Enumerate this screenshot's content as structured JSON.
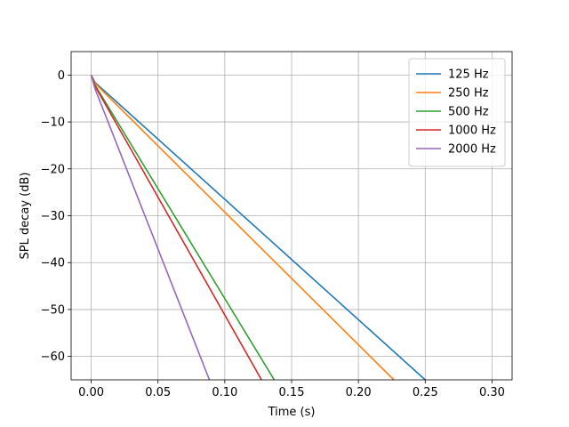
{
  "chart_data": {
    "type": "line",
    "title": "",
    "xlabel": "Time (s)",
    "ylabel": "SPL decay (dB)",
    "xlim": [
      -0.015,
      0.315
    ],
    "ylim": [
      -65,
      5
    ],
    "xticks": [
      0.0,
      0.05,
      0.1,
      0.15,
      0.2,
      0.25,
      0.3
    ],
    "xtick_labels": [
      "0.00",
      "0.05",
      "0.10",
      "0.15",
      "0.20",
      "0.25",
      "0.30"
    ],
    "yticks": [
      0,
      -10,
      -20,
      -30,
      -40,
      -50,
      -60
    ],
    "ytick_labels": [
      "0",
      "−10",
      "−20",
      "−30",
      "−40",
      "−50",
      "−60"
    ],
    "grid": true,
    "legend_position": "top-right",
    "series": [
      {
        "name": "125 Hz",
        "color": "#1f77b4",
        "points": [
          [
            0.0,
            0
          ],
          [
            0.003,
            -1.6
          ],
          [
            0.25,
            -65
          ]
        ]
      },
      {
        "name": "250 Hz",
        "color": "#ff7f0e",
        "points": [
          [
            0.0,
            0
          ],
          [
            0.003,
            -1.8
          ],
          [
            0.2265,
            -65
          ]
        ]
      },
      {
        "name": "500 Hz",
        "color": "#2ca02c",
        "points": [
          [
            0.0,
            0
          ],
          [
            0.003,
            -2.2
          ],
          [
            0.137,
            -65
          ]
        ]
      },
      {
        "name": "1000 Hz",
        "color": "#d62728",
        "points": [
          [
            0.0,
            0
          ],
          [
            0.003,
            -2.4
          ],
          [
            0.1275,
            -65
          ]
        ]
      },
      {
        "name": "2000 Hz",
        "color": "#9467bd",
        "points": [
          [
            0.0,
            0
          ],
          [
            0.003,
            -3.0
          ],
          [
            0.0885,
            -65
          ]
        ]
      }
    ]
  }
}
